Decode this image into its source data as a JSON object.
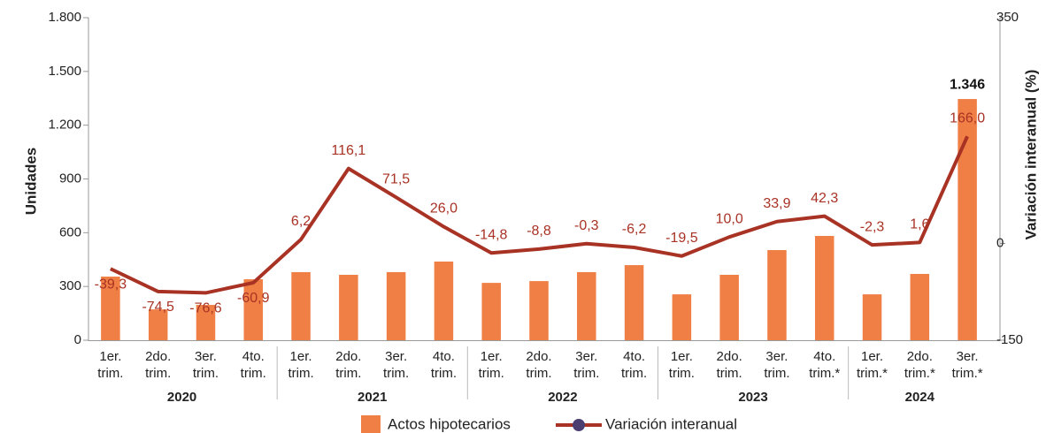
{
  "chart_data": {
    "type": "bar_line",
    "y_label": "Unidades",
    "y2_label": "Variación interanual (%)",
    "groups": [
      {
        "name": "2020",
        "categories": [
          [
            "1er.",
            "trim."
          ],
          [
            "2do.",
            "trim."
          ],
          [
            "3er.",
            "trim."
          ],
          [
            "4to.",
            "trim."
          ]
        ]
      },
      {
        "name": "2021",
        "categories": [
          [
            "1er.",
            "trim."
          ],
          [
            "2do.",
            "trim."
          ],
          [
            "3er.",
            "trim."
          ],
          [
            "4to.",
            "trim."
          ]
        ]
      },
      {
        "name": "2022",
        "categories": [
          [
            "1er.",
            "trim."
          ],
          [
            "2do.",
            "trim."
          ],
          [
            "3er.",
            "trim."
          ],
          [
            "4to.",
            "trim."
          ]
        ]
      },
      {
        "name": "2023",
        "categories": [
          [
            "1er.",
            "trim."
          ],
          [
            "2do.",
            "trim."
          ],
          [
            "3er.",
            "trim."
          ],
          [
            "4to.",
            "trim.*"
          ]
        ]
      },
      {
        "name": "2024",
        "categories": [
          [
            "1er.",
            "trim.*"
          ],
          [
            "2do.",
            "trim.*"
          ],
          [
            "3er.",
            "trim.*"
          ]
        ]
      }
    ],
    "series": [
      {
        "name": "Actos hipotecarios",
        "color": "#f07f45",
        "kind": "bar",
        "values": [
          355,
          172,
          197,
          340,
          380,
          365,
          380,
          439,
          320,
          330,
          380,
          419,
          256,
          365,
          503,
          582,
          256,
          370,
          1346
        ],
        "value_labels": [
          null,
          null,
          null,
          null,
          null,
          null,
          null,
          null,
          null,
          null,
          null,
          null,
          null,
          null,
          null,
          null,
          null,
          null,
          "1.346"
        ]
      },
      {
        "name": "Variación interanual",
        "color": "#a83224",
        "marker_color": "#4b3f72",
        "kind": "line",
        "axis": "y2",
        "values": [
          -39.3,
          -74.5,
          -76.6,
          -60.9,
          6.2,
          116.1,
          71.5,
          26.0,
          -14.8,
          -8.8,
          -0.3,
          -6.2,
          -19.5,
          10.0,
          33.9,
          42.3,
          -2.3,
          1.6,
          166.0
        ],
        "value_labels": [
          "-39,3",
          "-74,5",
          "-76,6",
          "-60,9",
          "6,2",
          "116,1",
          "71,5",
          "26,0",
          "-14,8",
          "-8,8",
          "-0,3",
          "-6,2",
          "-19,5",
          "10,0",
          "33,9",
          "42,3",
          "-2,3",
          "1,6",
          "166,0"
        ]
      }
    ],
    "ylim": [
      0,
      1800
    ],
    "yticks": [
      0,
      300,
      600,
      900,
      {
        "value": 1200,
        "label": "1.200"
      },
      {
        "value": 1500,
        "label": "1.500"
      },
      {
        "value": 1800,
        "label": "1.800"
      }
    ],
    "y2lim": [
      -150,
      350
    ],
    "y2ticks": [
      -150,
      0,
      350
    ]
  }
}
